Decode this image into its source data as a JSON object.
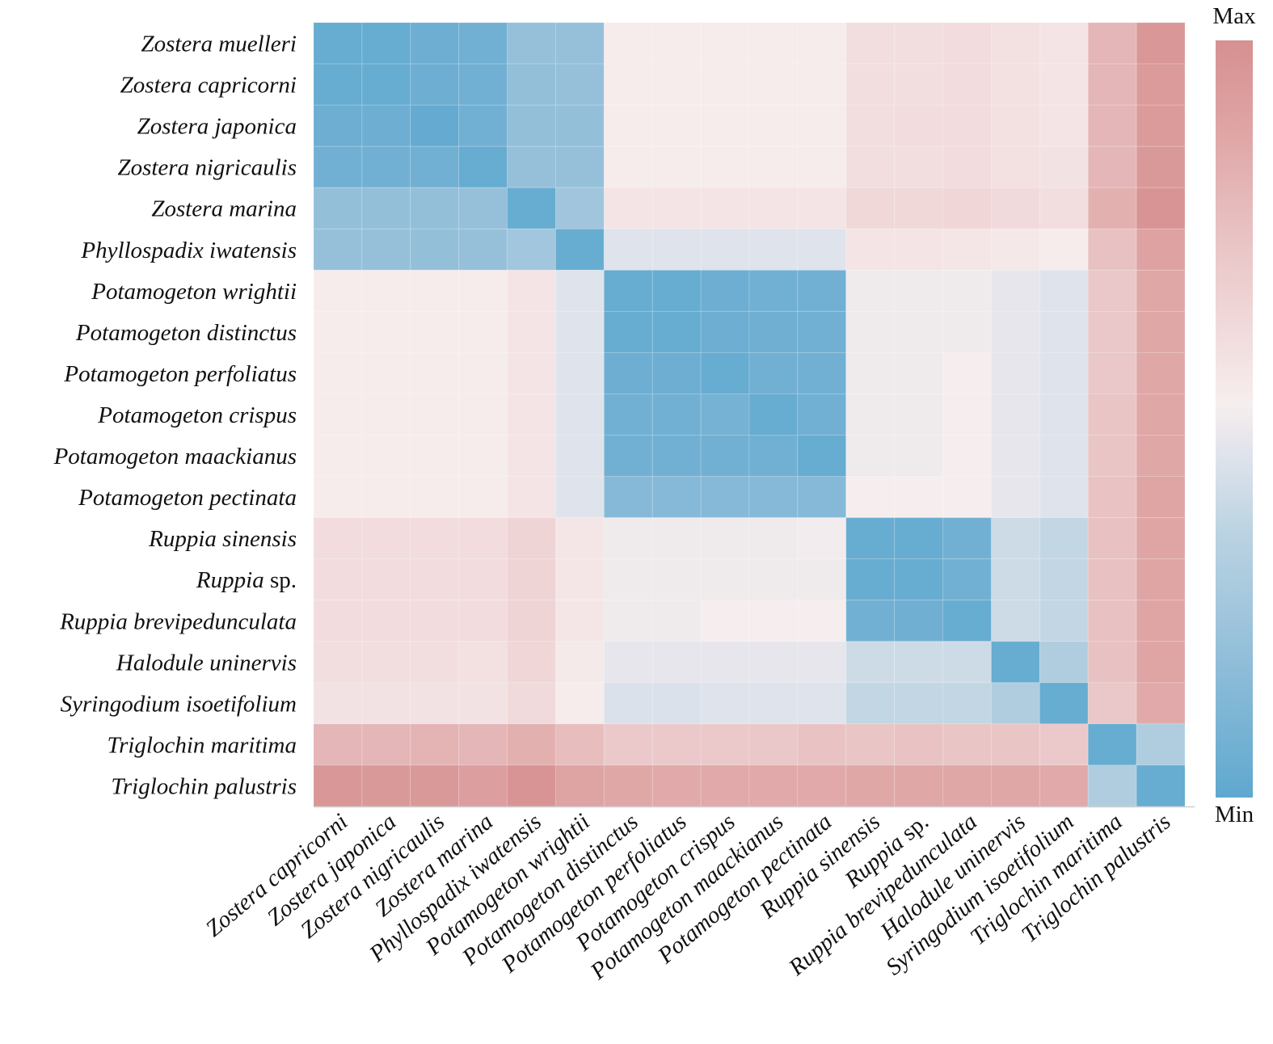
{
  "chart_data": {
    "type": "heatmap",
    "title": "",
    "xlabel": "",
    "ylabel": "",
    "value_scale": "relative (0 = Min, 1 = Max)",
    "colorbar": {
      "max_label": "Max",
      "min_label": "Min",
      "min_color": "#5FA8CF",
      "mid_color": "#F6EEEE",
      "max_color": "#D69090"
    },
    "rows": [
      {
        "genus": "Zostera",
        "epithet": "muelleri"
      },
      {
        "genus": "Zostera",
        "epithet": "capricorni"
      },
      {
        "genus": "Zostera",
        "epithet": "japonica"
      },
      {
        "genus": "Zostera",
        "epithet": "nigricaulis"
      },
      {
        "genus": "Zostera",
        "epithet": "marina"
      },
      {
        "genus": "Phyllospadix",
        "epithet": "iwatensis"
      },
      {
        "genus": "Potamogeton",
        "epithet": "wrightii"
      },
      {
        "genus": "Potamogeton",
        "epithet": "distinctus"
      },
      {
        "genus": "Potamogeton",
        "epithet": "perfoliatus"
      },
      {
        "genus": "Potamogeton",
        "epithet": "crispus"
      },
      {
        "genus": "Potamogeton",
        "epithet": "maackianus"
      },
      {
        "genus": "Potamogeton",
        "epithet": "pectinata"
      },
      {
        "genus": "Ruppia",
        "epithet": "sinensis"
      },
      {
        "genus": "Ruppia",
        "epithet": "sp.",
        "epithet_upright": true
      },
      {
        "genus": "Ruppia",
        "epithet": "brevipedunculata"
      },
      {
        "genus": "Halodule",
        "epithet": "uninervis"
      },
      {
        "genus": "Syringodium",
        "epithet": "isoetifolium"
      },
      {
        "genus": "Triglochin",
        "epithet": "maritima"
      },
      {
        "genus": "Triglochin",
        "epithet": "palustris"
      }
    ],
    "columns": [
      {
        "genus": "Zostera",
        "epithet": "capricorni"
      },
      {
        "genus": "Zostera",
        "epithet": "japonica"
      },
      {
        "genus": "Zostera",
        "epithet": "nigricaulis"
      },
      {
        "genus": "Zostera",
        "epithet": "marina"
      },
      {
        "genus": "Phyllospadix",
        "epithet": "iwatensis"
      },
      {
        "genus": "Potamogeton",
        "epithet": "wrightii"
      },
      {
        "genus": "Potamogeton",
        "epithet": "distinctus"
      },
      {
        "genus": "Potamogeton",
        "epithet": "perfoliatus"
      },
      {
        "genus": "Potamogeton",
        "epithet": "crispus"
      },
      {
        "genus": "Potamogeton",
        "epithet": "maackianus"
      },
      {
        "genus": "Potamogeton",
        "epithet": "pectinata"
      },
      {
        "genus": "Ruppia",
        "epithet": "sinensis"
      },
      {
        "genus": "Ruppia",
        "epithet": "sp.",
        "epithet_upright": true
      },
      {
        "genus": "Ruppia",
        "epithet": "brevipedunculata"
      },
      {
        "genus": "Halodule",
        "epithet": "uninervis"
      },
      {
        "genus": "Syringodium",
        "epithet": "isoetifolium"
      },
      {
        "genus": "Triglochin",
        "epithet": "maritima"
      },
      {
        "genus": "Triglochin",
        "epithet": "palustris"
      }
    ],
    "values": [
      [
        0.03,
        0.03,
        0.05,
        0.07,
        0.2,
        0.2,
        0.53,
        0.53,
        0.53,
        0.53,
        0.53,
        0.6,
        0.6,
        0.61,
        0.59,
        0.57,
        0.8,
        0.96
      ],
      [
        0.03,
        0.03,
        0.05,
        0.07,
        0.19,
        0.2,
        0.53,
        0.53,
        0.53,
        0.53,
        0.53,
        0.6,
        0.6,
        0.61,
        0.59,
        0.57,
        0.8,
        0.94
      ],
      [
        0.05,
        0.05,
        0.02,
        0.07,
        0.19,
        0.19,
        0.53,
        0.53,
        0.53,
        0.53,
        0.53,
        0.6,
        0.61,
        0.61,
        0.59,
        0.57,
        0.8,
        0.94
      ],
      [
        0.07,
        0.07,
        0.07,
        0.03,
        0.2,
        0.2,
        0.53,
        0.53,
        0.53,
        0.53,
        0.53,
        0.6,
        0.6,
        0.61,
        0.59,
        0.58,
        0.8,
        0.95
      ],
      [
        0.19,
        0.19,
        0.19,
        0.2,
        0.03,
        0.24,
        0.57,
        0.57,
        0.57,
        0.57,
        0.57,
        0.63,
        0.63,
        0.64,
        0.62,
        0.6,
        0.83,
        0.98
      ],
      [
        0.2,
        0.2,
        0.19,
        0.2,
        0.25,
        0.03,
        0.45,
        0.45,
        0.45,
        0.45,
        0.45,
        0.57,
        0.57,
        0.56,
        0.55,
        0.53,
        0.75,
        0.9
      ],
      [
        0.53,
        0.53,
        0.53,
        0.53,
        0.57,
        0.45,
        0.03,
        0.03,
        0.05,
        0.07,
        0.07,
        0.5,
        0.5,
        0.5,
        0.47,
        0.45,
        0.72,
        0.87
      ],
      [
        0.53,
        0.53,
        0.53,
        0.53,
        0.57,
        0.45,
        0.03,
        0.03,
        0.05,
        0.06,
        0.07,
        0.5,
        0.5,
        0.5,
        0.47,
        0.45,
        0.72,
        0.87
      ],
      [
        0.53,
        0.53,
        0.53,
        0.53,
        0.57,
        0.45,
        0.05,
        0.05,
        0.03,
        0.07,
        0.07,
        0.5,
        0.5,
        0.52,
        0.47,
        0.45,
        0.72,
        0.87
      ],
      [
        0.53,
        0.53,
        0.53,
        0.53,
        0.57,
        0.45,
        0.07,
        0.07,
        0.08,
        0.03,
        0.07,
        0.5,
        0.5,
        0.52,
        0.47,
        0.45,
        0.73,
        0.87
      ],
      [
        0.53,
        0.53,
        0.53,
        0.53,
        0.57,
        0.45,
        0.07,
        0.07,
        0.07,
        0.07,
        0.03,
        0.5,
        0.5,
        0.52,
        0.47,
        0.45,
        0.73,
        0.87
      ],
      [
        0.53,
        0.53,
        0.53,
        0.53,
        0.57,
        0.45,
        0.14,
        0.14,
        0.14,
        0.14,
        0.14,
        0.52,
        0.52,
        0.52,
        0.47,
        0.45,
        0.74,
        0.88
      ],
      [
        0.61,
        0.61,
        0.61,
        0.61,
        0.65,
        0.56,
        0.5,
        0.5,
        0.5,
        0.5,
        0.51,
        0.03,
        0.03,
        0.07,
        0.4,
        0.37,
        0.75,
        0.88
      ],
      [
        0.61,
        0.61,
        0.61,
        0.61,
        0.65,
        0.56,
        0.5,
        0.5,
        0.5,
        0.5,
        0.5,
        0.03,
        0.03,
        0.07,
        0.4,
        0.37,
        0.75,
        0.88
      ],
      [
        0.61,
        0.61,
        0.61,
        0.61,
        0.65,
        0.56,
        0.5,
        0.5,
        0.52,
        0.52,
        0.52,
        0.07,
        0.06,
        0.03,
        0.4,
        0.37,
        0.75,
        0.88
      ],
      [
        0.6,
        0.6,
        0.6,
        0.59,
        0.64,
        0.54,
        0.47,
        0.47,
        0.47,
        0.47,
        0.47,
        0.4,
        0.4,
        0.4,
        0.03,
        0.3,
        0.75,
        0.88
      ],
      [
        0.58,
        0.58,
        0.58,
        0.58,
        0.62,
        0.53,
        0.44,
        0.44,
        0.45,
        0.45,
        0.45,
        0.37,
        0.37,
        0.37,
        0.3,
        0.03,
        0.72,
        0.86
      ],
      [
        0.8,
        0.8,
        0.81,
        0.8,
        0.83,
        0.77,
        0.71,
        0.71,
        0.71,
        0.72,
        0.74,
        0.73,
        0.74,
        0.73,
        0.73,
        0.71,
        0.03,
        0.3
      ],
      [
        0.96,
        0.95,
        0.95,
        0.92,
        0.98,
        0.89,
        0.87,
        0.86,
        0.86,
        0.86,
        0.86,
        0.87,
        0.87,
        0.87,
        0.87,
        0.86,
        0.3,
        0.03
      ]
    ]
  }
}
